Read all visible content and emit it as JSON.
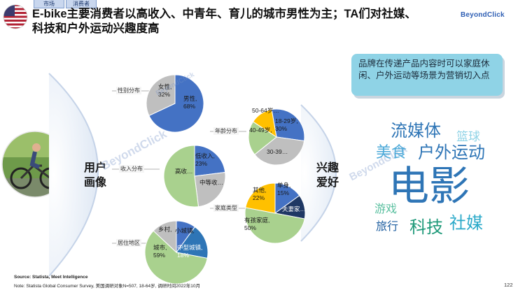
{
  "header": {
    "tags": [
      "市场",
      "消费者"
    ],
    "title_line1": "E-bike主要消费者以高收入、中青年、育儿的城市男性为主；TA们对社媒、",
    "title_line2": "科技和户外运动兴趣度高",
    "logo": "BeyondClick"
  },
  "colors": {
    "blue": "#4472c4",
    "gray": "#bfbfbf",
    "green": "#a9d18e",
    "yellow": "#ffc000",
    "navy": "#1f3864",
    "teal": "#2e75b6",
    "callout": "#8fd3e6"
  },
  "left_hub": {
    "line1": "用户",
    "line2": "画像"
  },
  "right_hub": {
    "line1": "兴趣",
    "line2": "爱好"
  },
  "segments": {
    "gender": "性别分布",
    "age": "年龄分布",
    "income": "收入分布",
    "family": "家庭类型",
    "residence": "居住地区"
  },
  "pies": {
    "gender": {
      "slices": [
        {
          "label": "男性,",
          "pct": "68%",
          "value": 68,
          "color": "#4472c4"
        },
        {
          "label": "女性,",
          "pct": "32%",
          "value": 32,
          "color": "#bfbfbf"
        }
      ]
    },
    "age": {
      "slices": [
        {
          "label": "18-29岁,",
          "pct": "30%",
          "value": 30,
          "color": "#4472c4"
        },
        {
          "label": "30-39…",
          "pct": "",
          "value": 37,
          "color": "#bfbfbf"
        },
        {
          "label": "40-49岁,",
          "pct": "",
          "value": 20,
          "color": "#a9d18e"
        },
        {
          "label": "50-64岁…",
          "pct": "",
          "value": 13,
          "color": "#ffc000"
        }
      ]
    },
    "income": {
      "slices": [
        {
          "label": "低收入,",
          "pct": "23%",
          "value": 23,
          "color": "#4472c4"
        },
        {
          "label": "中等收…",
          "pct": "",
          "value": 25,
          "color": "#bfbfbf"
        },
        {
          "label": "高收…",
          "pct": "",
          "value": 52,
          "color": "#a9d18e"
        }
      ]
    },
    "family": {
      "slices": [
        {
          "label": "单身,",
          "pct": "15%",
          "value": 15,
          "color": "#4472c4"
        },
        {
          "label": "夫妻家…",
          "pct": "",
          "value": 13,
          "color": "#1f3864"
        },
        {
          "label": "有孩家庭,",
          "pct": "50%",
          "value": 50,
          "color": "#a9d18e"
        },
        {
          "label": "其他,",
          "pct": "22%",
          "value": 22,
          "color": "#ffc000"
        }
      ]
    },
    "residence": {
      "slices": [
        {
          "label": "小城镇,",
          "pct": "",
          "value": 10,
          "color": "#4472c4"
        },
        {
          "label": "中型城镇,",
          "pct": "18%",
          "value": 18,
          "color": "#2e75b6"
        },
        {
          "label": "城市,",
          "pct": "59%",
          "value": 59,
          "color": "#a9d18e"
        },
        {
          "label": "乡村,",
          "pct": "",
          "value": 13,
          "color": "#bfbfbf"
        }
      ]
    }
  },
  "callout": {
    "text": "品牌在传递产品内容时可以家庭休闲、户外运动等场景为营销切入点"
  },
  "word_cloud": [
    {
      "text": "流媒体",
      "color": "#2e75b6"
    },
    {
      "text": "篮球",
      "color": "#8fd3e6"
    },
    {
      "text": "美食",
      "color": "#4aa8d8"
    },
    {
      "text": "户外运动",
      "color": "#2e75b6"
    },
    {
      "text": "电影",
      "color": "#2e75b6"
    },
    {
      "text": "游戏",
      "color": "#5bc0a0"
    },
    {
      "text": "旅行",
      "color": "#1f5fa0"
    },
    {
      "text": "科技",
      "color": "#1f9a7a"
    },
    {
      "text": "社媒",
      "color": "#2aa9c9"
    }
  ],
  "watermark": "BeyondClick",
  "footer": {
    "source": "Source: Statista, Meet Intelligence",
    "note": "Note: Statista Global Consumer Survey, 美国调研对象N=507, 18-64岁, 调研时间2022年10月"
  },
  "page_number": "122"
}
